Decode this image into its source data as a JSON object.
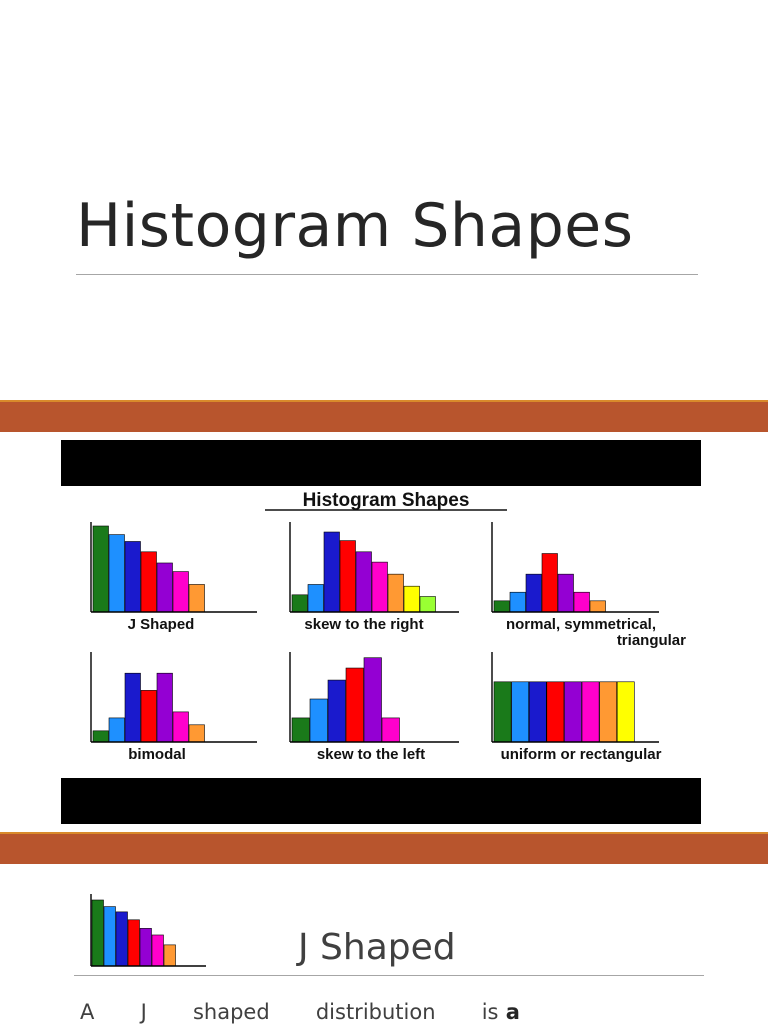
{
  "slide1": {
    "title": "Histogram Shapes"
  },
  "figure": {
    "heading": "Histogram Shapes",
    "panels": [
      {
        "label": [
          "J Shaped"
        ],
        "values": [
          10,
          9,
          8.2,
          7,
          5.7,
          4.7,
          3.2
        ],
        "colors": [
          "#1a7a1a",
          "#1e90ff",
          "#1a1acd",
          "#ff0000",
          "#9400d3",
          "#ff00cc",
          "#ff9933"
        ]
      },
      {
        "label": [
          "skew to the right"
        ],
        "values": [
          2,
          3.2,
          9.3,
          8.3,
          7,
          5.8,
          4.4,
          3,
          1.8
        ],
        "colors": [
          "#1a7a1a",
          "#1e90ff",
          "#1a1acd",
          "#ff0000",
          "#9400d3",
          "#ff00cc",
          "#ff9933",
          "#ffff00",
          "#99ff33"
        ]
      },
      {
        "label": [
          "normal, symmetrical,",
          "triangular"
        ],
        "values": [
          1.3,
          2.3,
          4.4,
          6.8,
          4.4,
          2.3,
          1.3
        ],
        "colors": [
          "#1a7a1a",
          "#1e90ff",
          "#1a1acd",
          "#ff0000",
          "#9400d3",
          "#ff00cc",
          "#ff9933"
        ]
      },
      {
        "label": [
          "bimodal"
        ],
        "values": [
          1.3,
          2.8,
          8,
          6,
          8,
          3.5,
          2
        ],
        "colors": [
          "#1a7a1a",
          "#1e90ff",
          "#1a1acd",
          "#ff0000",
          "#9400d3",
          "#ff00cc",
          "#ff9933"
        ]
      },
      {
        "label": [
          "skew to the left"
        ],
        "values": [
          2.8,
          5,
          7.2,
          8.6,
          9.8,
          2.8
        ],
        "colors": [
          "#1a7a1a",
          "#1e90ff",
          "#1a1acd",
          "#ff0000",
          "#9400d3",
          "#ff00cc"
        ]
      },
      {
        "label": [
          "uniform or rectangular"
        ],
        "values": [
          7,
          7,
          7,
          7,
          7,
          7,
          7,
          7
        ],
        "colors": [
          "#1a7a1a",
          "#1e90ff",
          "#1a1acd",
          "#ff0000",
          "#9400d3",
          "#ff00cc",
          "#ff9933",
          "#ffff00"
        ]
      }
    ]
  },
  "slide3": {
    "title": "J Shaped",
    "thumbnail_values": [
      10,
      9,
      8.2,
      7,
      5.7,
      4.7,
      3.2
    ],
    "thumbnail_colors": [
      "#1a7a1a",
      "#1e90ff",
      "#1a1acd",
      "#ff0000",
      "#9400d3",
      "#ff00cc",
      "#ff9933"
    ],
    "body_words": [
      "A",
      "J",
      "shaped",
      "distribution",
      "is"
    ],
    "body_bold": "a"
  }
}
